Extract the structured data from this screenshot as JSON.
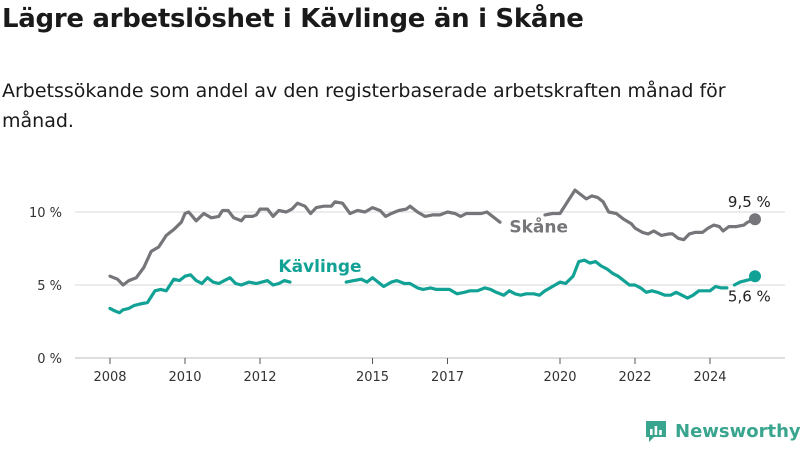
{
  "title": "Lägre arbetslöshet i Kävlinge än i Skåne",
  "subtitle": "Arbetssökande som andel av den registerbaserade arbetskraften månad för månad.",
  "brand": "Newsworthy",
  "colors": {
    "skane": "#76767a",
    "kavlinge": "#12a295",
    "grid": "#d9d9d9",
    "brand": "#3aa58e"
  },
  "chart_data": {
    "type": "line",
    "x_unit": "year",
    "y_unit": "%",
    "xlim": [
      2007.6,
      2025.6
    ],
    "ylim": [
      0,
      10
    ],
    "y_ticks": [
      {
        "value": 0,
        "label": "0 %"
      },
      {
        "value": 5,
        "label": "5 %"
      },
      {
        "value": 10,
        "label": "10 %"
      }
    ],
    "x_ticks": [
      {
        "value": 2008,
        "label": "2008"
      },
      {
        "value": 2010,
        "label": "2010"
      },
      {
        "value": 2012,
        "label": "2012"
      },
      {
        "value": 2015,
        "label": "2015"
      },
      {
        "value": 2017,
        "label": "2017"
      },
      {
        "value": 2020,
        "label": "2020"
      },
      {
        "value": 2022,
        "label": "2022"
      },
      {
        "value": 2024,
        "label": "2024"
      }
    ],
    "grid": true,
    "series": [
      {
        "name": "Skåne",
        "key": "skane",
        "end_label": "9,5 %",
        "points": [
          [
            2008.0,
            5.6
          ],
          [
            2008.2,
            5.4
          ],
          [
            2008.35,
            5.0
          ],
          [
            2008.5,
            5.3
          ],
          [
            2008.7,
            5.5
          ],
          [
            2008.9,
            6.2
          ],
          [
            2009.1,
            7.3
          ],
          [
            2009.3,
            7.6
          ],
          [
            2009.5,
            8.4
          ],
          [
            2009.7,
            8.8
          ],
          [
            2009.9,
            9.3
          ],
          [
            2010.0,
            9.9
          ],
          [
            2010.1,
            10.0
          ],
          [
            2010.3,
            9.4
          ],
          [
            2010.5,
            9.9
          ],
          [
            2010.7,
            9.6
          ],
          [
            2010.9,
            9.7
          ],
          [
            2011.0,
            10.1
          ],
          [
            2011.15,
            10.1
          ],
          [
            2011.3,
            9.6
          ],
          [
            2011.5,
            9.4
          ],
          [
            2011.6,
            9.7
          ],
          [
            2011.8,
            9.7
          ],
          [
            2011.9,
            9.8
          ],
          [
            2012.0,
            10.2
          ],
          [
            2012.2,
            10.2
          ],
          [
            2012.35,
            9.7
          ],
          [
            2012.5,
            10.1
          ],
          [
            2012.7,
            10.0
          ],
          [
            2012.85,
            10.2
          ],
          [
            2013.0,
            10.6
          ],
          [
            2013.2,
            10.4
          ],
          [
            2013.35,
            9.9
          ],
          [
            2013.5,
            10.3
          ],
          [
            2013.7,
            10.4
          ],
          [
            2013.9,
            10.4
          ],
          [
            2014.0,
            10.7
          ],
          [
            2014.2,
            10.6
          ],
          [
            2014.4,
            9.9
          ],
          [
            2014.6,
            10.1
          ],
          [
            2014.8,
            10.0
          ],
          [
            2015.0,
            10.3
          ],
          [
            2015.2,
            10.1
          ],
          [
            2015.35,
            9.7
          ],
          [
            2015.5,
            9.9
          ],
          [
            2015.7,
            10.1
          ],
          [
            2015.9,
            10.2
          ],
          [
            2016.0,
            10.4
          ],
          [
            2016.2,
            10.0
          ],
          [
            2016.4,
            9.7
          ],
          [
            2016.6,
            9.8
          ],
          [
            2016.8,
            9.8
          ],
          [
            2017.0,
            10.0
          ],
          [
            2017.2,
            9.9
          ],
          [
            2017.35,
            9.7
          ],
          [
            2017.5,
            9.9
          ],
          [
            2017.7,
            9.9
          ],
          [
            2017.9,
            9.9
          ],
          [
            2018.05,
            10.0
          ],
          [
            2018.2,
            9.7
          ],
          [
            2018.4,
            9.3
          ]
        ],
        "points2": [
          [
            2019.6,
            9.8
          ],
          [
            2019.8,
            9.9
          ],
          [
            2020.0,
            9.9
          ],
          [
            2020.2,
            10.7
          ],
          [
            2020.4,
            11.5
          ],
          [
            2020.55,
            11.2
          ],
          [
            2020.7,
            10.9
          ],
          [
            2020.85,
            11.1
          ],
          [
            2021.0,
            11.0
          ],
          [
            2021.15,
            10.7
          ],
          [
            2021.3,
            10.0
          ],
          [
            2021.5,
            9.9
          ],
          [
            2021.7,
            9.5
          ],
          [
            2021.9,
            9.2
          ],
          [
            2022.0,
            8.9
          ],
          [
            2022.2,
            8.6
          ],
          [
            2022.35,
            8.5
          ],
          [
            2022.5,
            8.7
          ],
          [
            2022.7,
            8.4
          ],
          [
            2022.9,
            8.5
          ],
          [
            2023.0,
            8.5
          ],
          [
            2023.15,
            8.2
          ],
          [
            2023.3,
            8.1
          ],
          [
            2023.45,
            8.5
          ],
          [
            2023.6,
            8.6
          ],
          [
            2023.8,
            8.6
          ],
          [
            2023.95,
            8.9
          ],
          [
            2024.1,
            9.1
          ],
          [
            2024.25,
            9.0
          ],
          [
            2024.35,
            8.7
          ],
          [
            2024.5,
            9.0
          ],
          [
            2024.7,
            9.0
          ],
          [
            2024.9,
            9.1
          ],
          [
            2025.0,
            9.3
          ],
          [
            2025.1,
            9.4
          ],
          [
            2025.2,
            9.5
          ]
        ]
      },
      {
        "name": "Kävlinge",
        "key": "kavlinge",
        "end_label": "5,6 %",
        "points": [
          [
            2008.0,
            3.4
          ],
          [
            2008.15,
            3.2
          ],
          [
            2008.25,
            3.1
          ],
          [
            2008.35,
            3.3
          ],
          [
            2008.5,
            3.4
          ],
          [
            2008.65,
            3.6
          ],
          [
            2008.8,
            3.7
          ],
          [
            2009.0,
            3.8
          ],
          [
            2009.2,
            4.6
          ],
          [
            2009.35,
            4.7
          ],
          [
            2009.5,
            4.6
          ],
          [
            2009.7,
            5.4
          ],
          [
            2009.85,
            5.3
          ],
          [
            2010.0,
            5.6
          ],
          [
            2010.15,
            5.7
          ],
          [
            2010.3,
            5.3
          ],
          [
            2010.45,
            5.1
          ],
          [
            2010.6,
            5.5
          ],
          [
            2010.75,
            5.2
          ],
          [
            2010.9,
            5.1
          ],
          [
            2011.05,
            5.3
          ],
          [
            2011.2,
            5.5
          ],
          [
            2011.35,
            5.1
          ],
          [
            2011.5,
            5.0
          ],
          [
            2011.7,
            5.2
          ],
          [
            2011.9,
            5.1
          ],
          [
            2012.05,
            5.2
          ],
          [
            2012.2,
            5.3
          ],
          [
            2012.35,
            5.0
          ],
          [
            2012.5,
            5.1
          ],
          [
            2012.65,
            5.3
          ],
          [
            2012.8,
            5.2
          ]
        ],
        "points2": [
          [
            2014.3,
            5.2
          ],
          [
            2014.5,
            5.3
          ],
          [
            2014.7,
            5.4
          ],
          [
            2014.85,
            5.2
          ],
          [
            2015.0,
            5.5
          ],
          [
            2015.15,
            5.2
          ],
          [
            2015.3,
            4.9
          ],
          [
            2015.5,
            5.2
          ],
          [
            2015.65,
            5.3
          ],
          [
            2015.85,
            5.1
          ],
          [
            2016.0,
            5.1
          ],
          [
            2016.2,
            4.8
          ],
          [
            2016.35,
            4.7
          ],
          [
            2016.55,
            4.8
          ],
          [
            2016.7,
            4.7
          ],
          [
            2016.9,
            4.7
          ],
          [
            2017.05,
            4.7
          ],
          [
            2017.25,
            4.4
          ],
          [
            2017.45,
            4.5
          ],
          [
            2017.6,
            4.6
          ],
          [
            2017.8,
            4.6
          ],
          [
            2018.0,
            4.8
          ],
          [
            2018.15,
            4.7
          ],
          [
            2018.3,
            4.5
          ],
          [
            2018.5,
            4.3
          ],
          [
            2018.65,
            4.6
          ],
          [
            2018.8,
            4.4
          ],
          [
            2018.95,
            4.3
          ],
          [
            2019.1,
            4.4
          ],
          [
            2019.3,
            4.4
          ],
          [
            2019.45,
            4.3
          ],
          [
            2019.6,
            4.6
          ],
          [
            2019.8,
            4.9
          ],
          [
            2020.0,
            5.2
          ],
          [
            2020.15,
            5.1
          ],
          [
            2020.35,
            5.6
          ],
          [
            2020.5,
            6.6
          ],
          [
            2020.65,
            6.7
          ],
          [
            2020.8,
            6.5
          ],
          [
            2020.95,
            6.6
          ],
          [
            2021.1,
            6.3
          ],
          [
            2021.25,
            6.1
          ],
          [
            2021.4,
            5.8
          ],
          [
            2021.55,
            5.6
          ],
          [
            2021.7,
            5.3
          ],
          [
            2021.85,
            5.0
          ],
          [
            2022.0,
            5.0
          ],
          [
            2022.15,
            4.8
          ],
          [
            2022.3,
            4.5
          ],
          [
            2022.45,
            4.6
          ],
          [
            2022.6,
            4.5
          ],
          [
            2022.8,
            4.3
          ],
          [
            2022.95,
            4.3
          ],
          [
            2023.1,
            4.5
          ],
          [
            2023.25,
            4.3
          ],
          [
            2023.4,
            4.1
          ],
          [
            2023.55,
            4.3
          ],
          [
            2023.7,
            4.6
          ],
          [
            2023.85,
            4.6
          ],
          [
            2024.0,
            4.6
          ],
          [
            2024.15,
            4.9
          ],
          [
            2024.3,
            4.8
          ],
          [
            2024.45,
            4.8
          ]
        ],
        "points3": [
          [
            2024.65,
            5.0
          ],
          [
            2024.8,
            5.2
          ],
          [
            2024.95,
            5.3
          ],
          [
            2025.1,
            5.4
          ],
          [
            2025.2,
            5.6
          ]
        ]
      }
    ]
  }
}
